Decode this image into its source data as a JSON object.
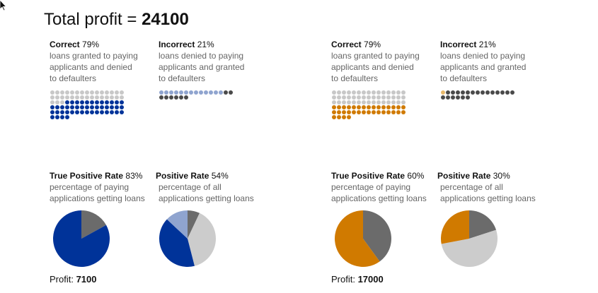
{
  "header": {
    "total_label": "Total profit = ",
    "total_value": "24100"
  },
  "colors": {
    "gray_dot": "#c8c8c8",
    "dark_dot": "#4a4a4a",
    "blue": "#003399",
    "light_blue": "#8fa4cf",
    "orange": "#d07a00",
    "light_orange": "#e8b86a",
    "pie_gray": "#6b6b6b",
    "pie_light": "#cccccc"
  },
  "panels": [
    {
      "accent": "blue",
      "correct": {
        "label": "Correct",
        "pct": "79%",
        "desc": "loans granted to paying\napplicants and denied\nto defaulters"
      },
      "incorrect": {
        "label": "Incorrect",
        "pct": "21%",
        "desc": "loans denied to paying\napplicants and granted\nto defaulters"
      },
      "tpr": {
        "label": "True Positive Rate",
        "pct": "83%",
        "desc": "percentage of paying\napplications getting loans",
        "fraction": 0.83
      },
      "pr": {
        "label": "Positive Rate",
        "pct": "54%",
        "desc": "percentage of all\napplications getting loans",
        "slices": [
          {
            "color": "pie_gray",
            "fraction": 0.07
          },
          {
            "color": "pie_light",
            "fraction": 0.39
          },
          {
            "color": "blue",
            "fraction": 0.41
          },
          {
            "color": "light_blue",
            "fraction": 0.13
          }
        ]
      },
      "profit_label": "Profit: ",
      "profit_value": "7100",
      "waffle_correct": {
        "gray": 33,
        "colored": 46
      },
      "waffle_incorrect": {
        "colored": 13,
        "dark": 8
      }
    },
    {
      "accent": "orange",
      "correct": {
        "label": "Correct",
        "pct": "79%",
        "desc": "loans granted to paying\napplicants and denied\nto defaulters"
      },
      "incorrect": {
        "label": "Incorrect",
        "pct": "21%",
        "desc": "loans denied to paying\napplicants and granted\nto defaulters"
      },
      "tpr": {
        "label": "True Positive Rate",
        "pct": "60%",
        "desc": "percentage of paying\napplications getting loans",
        "fraction": 0.6
      },
      "pr": {
        "label": "Positive Rate",
        "pct": "30%",
        "desc": "percentage of all\napplications getting loans",
        "slices": [
          {
            "color": "pie_gray",
            "fraction": 0.2
          },
          {
            "color": "pie_light",
            "fraction": 0.52
          },
          {
            "color": "orange",
            "fraction": 0.28
          }
        ]
      },
      "profit_label": "Profit: ",
      "profit_value": "17000",
      "waffle_correct": {
        "gray": 45,
        "colored": 34
      },
      "waffle_incorrect": {
        "colored": 1,
        "dark": 20
      }
    }
  ]
}
